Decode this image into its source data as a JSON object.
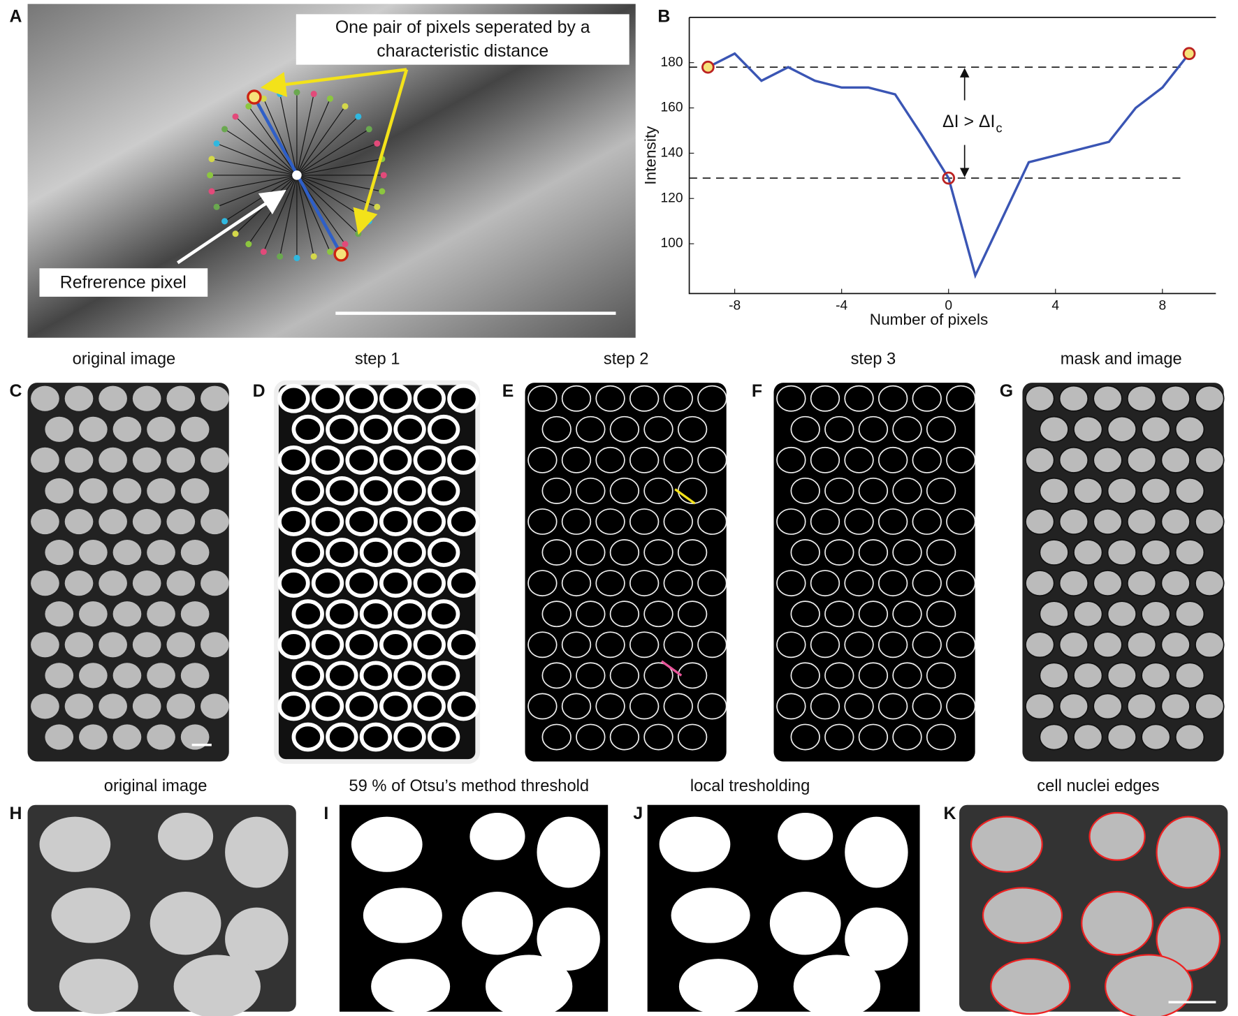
{
  "panel_labels": [
    "A",
    "B",
    "C",
    "D",
    "E",
    "F",
    "G",
    "H",
    "I",
    "J",
    "K"
  ],
  "panel_a": {
    "annotation_lines": [
      "One pair of pixels seperated by a",
      "characteristic distance"
    ],
    "reference_label": "Refrerence pixel"
  },
  "chart_data": {
    "type": "line",
    "xlabel": "Number of pixels",
    "ylabel": "Intensity",
    "x": [
      -9,
      -8,
      -7,
      -6,
      -5,
      -4,
      -3,
      -2,
      -1,
      0,
      1,
      2,
      3,
      4,
      5,
      6,
      7,
      8,
      9
    ],
    "values": [
      178,
      184,
      172,
      178,
      172,
      169,
      169,
      166,
      148,
      129,
      86,
      111,
      136,
      139,
      142,
      145,
      160,
      169,
      184
    ],
    "color": "#3a55b4",
    "xlim": [
      -9.7,
      10
    ],
    "ylim": [
      78,
      200
    ],
    "xticks": [
      -8,
      -4,
      0,
      4,
      8
    ],
    "yticks": [
      100,
      120,
      140,
      160,
      180
    ],
    "reference_lines": [
      178,
      129
    ],
    "markers": [
      {
        "x": -9,
        "y": 178,
        "color": "#f6e27a"
      },
      {
        "x": 0,
        "y": 129,
        "color": "none"
      },
      {
        "x": 9,
        "y": 184,
        "color": "#f6e27a"
      }
    ],
    "annotation": {
      "text": "ΔI > ΔI",
      "subscript": "c"
    }
  },
  "captions_row1": [
    "original image",
    "step 1",
    "step 2",
    "step 3",
    "mask and image"
  ],
  "captions_row2": [
    "original image",
    "59 % of Otsu’s method threshold",
    "local tresholding",
    "cell nuclei edges"
  ]
}
